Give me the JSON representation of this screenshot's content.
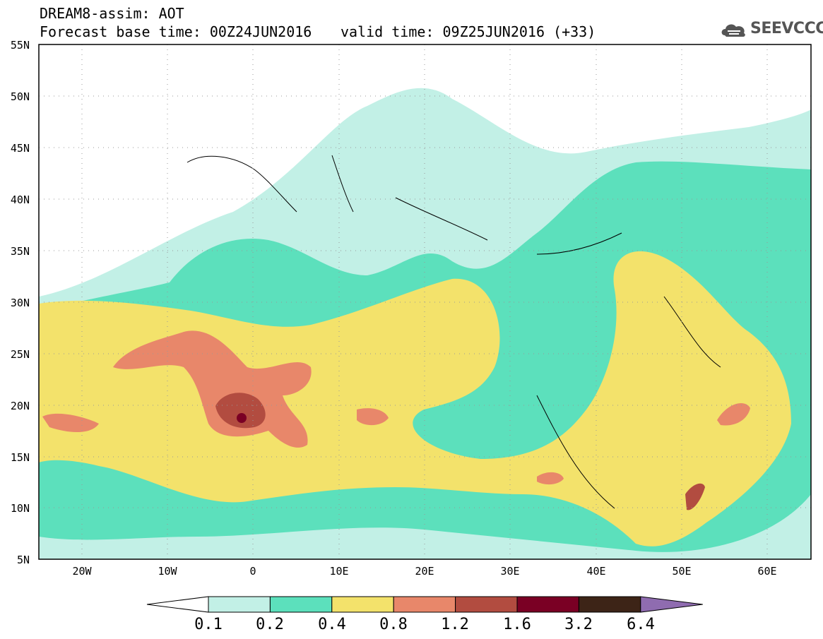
{
  "header": {
    "title": "DREAM8-assim: AOT",
    "base_time": "Forecast base time: 00Z24JUN2016",
    "valid_time": "valid time: 09Z25JUN2016 (+33)"
  },
  "logo": {
    "text": "SEEVCCC",
    "icon": "cloud-icon"
  },
  "map": {
    "lat_labels": [
      "55N",
      "50N",
      "45N",
      "40N",
      "35N",
      "30N",
      "25N",
      "20N",
      "15N",
      "10N",
      "5N"
    ],
    "lon_labels": [
      "20W",
      "10W",
      "0",
      "10E",
      "20E",
      "30E",
      "40E",
      "50E",
      "60E"
    ],
    "extent": {
      "lon": [
        -25,
        65
      ],
      "lat": [
        5,
        55
      ]
    },
    "grid": "dotted"
  },
  "legend": {
    "labels": [
      "0.1",
      "0.2",
      "0.4",
      "0.8",
      "1.2",
      "1.6",
      "3.2",
      "6.4"
    ],
    "colors": [
      "#ffffff",
      "#c2f0e6",
      "#5ce0bc",
      "#f3e26b",
      "#e8876a",
      "#b24c40",
      "#7a0024",
      "#3d2417",
      "#8f6cb0"
    ]
  }
}
